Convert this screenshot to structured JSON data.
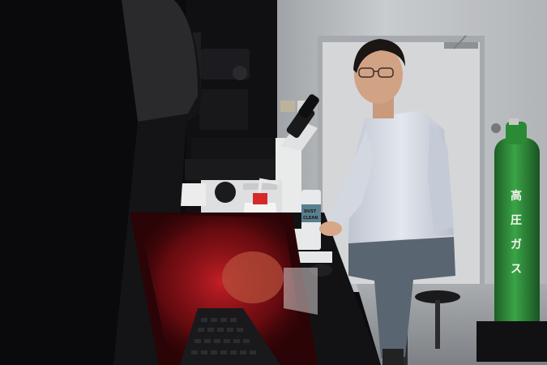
{
  "scene": {
    "type": "photograph",
    "colors": {
      "wall": "#c9ccce",
      "door": "#d4d6d8",
      "shirt": "#d6dbe4",
      "trousers": "#5a6572",
      "cylinder": "#2f8f3a",
      "reflection_glow": "#c21a22",
      "microscope_body": "#e9eaea",
      "dark_equipment": "#151518"
    },
    "gas_cylinder": {
      "label_glyphs": [
        "高",
        "圧",
        "ガ",
        "ス"
      ]
    },
    "spray_can": {
      "label_lines": [
        "DUST",
        "CLEAN"
      ]
    }
  }
}
